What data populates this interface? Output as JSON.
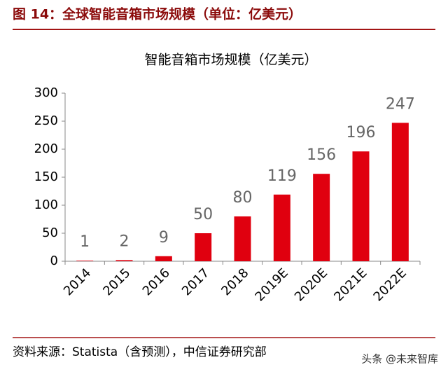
{
  "figure_title": "图 14：全球智能音箱市场规模（单位：亿美元）",
  "source": "资料来源：Statista（含预测），中信证券研究部",
  "watermark": "头条 @未来智库",
  "chart_data": {
    "type": "bar",
    "title": "智能音箱市场规模（亿美元）",
    "categories": [
      "2014",
      "2015",
      "2016",
      "2017",
      "2018",
      "2019E",
      "2020E",
      "2021E",
      "2022E"
    ],
    "values": [
      1,
      2,
      9,
      50,
      80,
      119,
      156,
      196,
      247
    ],
    "color": "#e0000f",
    "ylim": [
      0,
      300
    ],
    "yticks": [
      0,
      50,
      100,
      150,
      200,
      250,
      300
    ],
    "grid": false
  }
}
